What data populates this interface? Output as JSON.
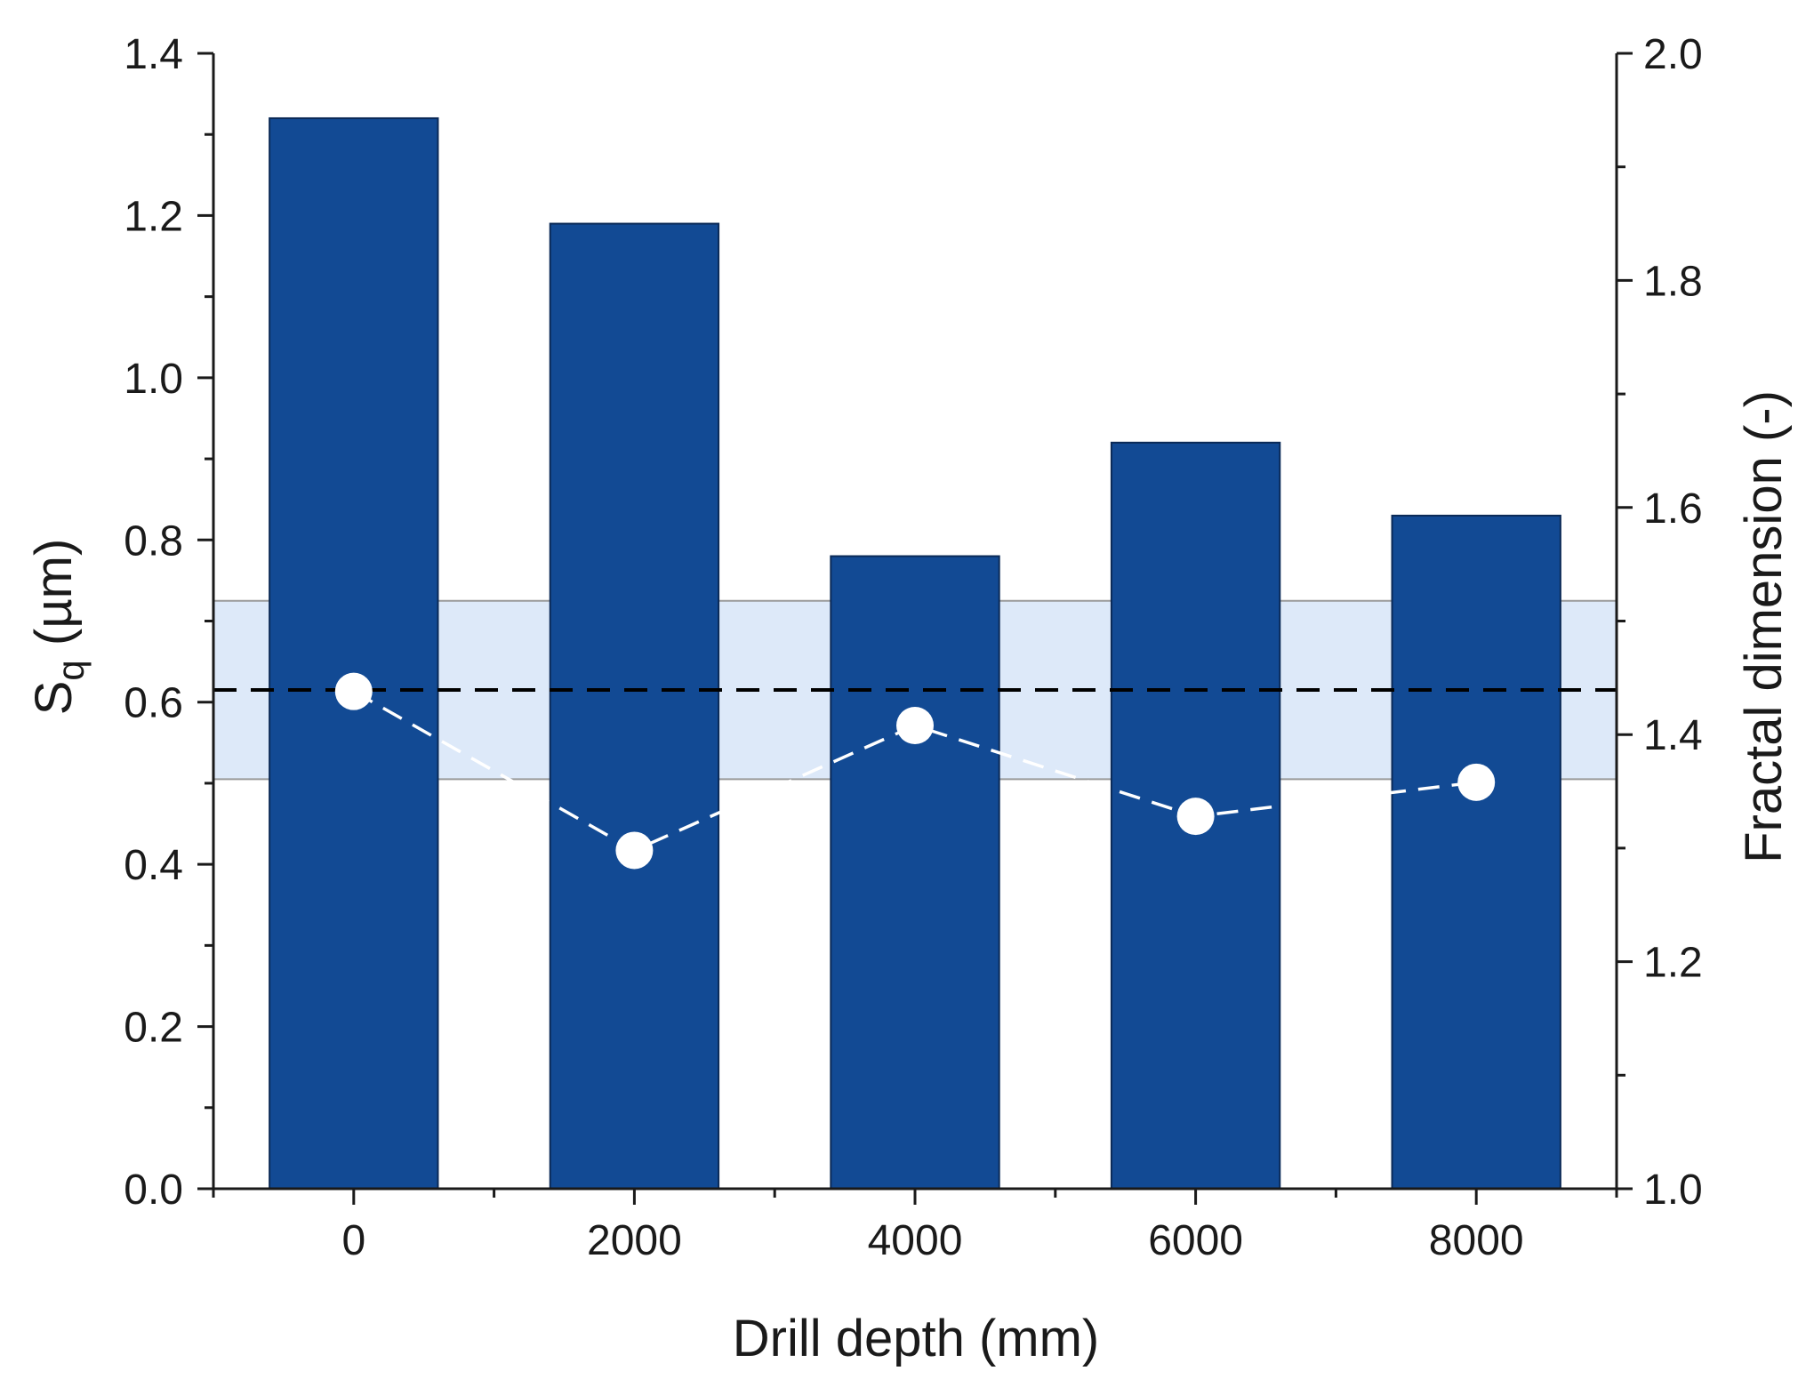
{
  "chart_data": {
    "type": "bar",
    "x": [
      0,
      2000,
      4000,
      6000,
      8000
    ],
    "categories": [
      "0",
      "2000",
      "4000",
      "6000",
      "8000"
    ],
    "series": [
      {
        "type": "bar",
        "axis": "left",
        "values": [
          1.32,
          1.19,
          0.78,
          0.92,
          0.83
        ],
        "color": "#124a94"
      },
      {
        "type": "line",
        "axis": "right",
        "values": [
          1.438,
          1.298,
          1.408,
          1.328,
          1.358
        ],
        "color": "#ffffff",
        "line_style": "dashed",
        "marker": "circle"
      }
    ],
    "reference_line": {
      "axis": "left",
      "value": 0.615,
      "color": "#000000",
      "line_style": "dashed"
    },
    "reference_band": {
      "axis": "left",
      "range": [
        0.505,
        0.725
      ],
      "color": "#dde9f9"
    },
    "xlabel": "Drill depth (mm)",
    "ylabel": {
      "main": "S",
      "subscript": "q",
      "rest": " (µm)"
    },
    "y2label": "Fractal dimension (-)",
    "xlim": [
      -1000,
      9000
    ],
    "ylim": [
      0,
      1.4
    ],
    "y2lim": [
      1.0,
      2.0
    ],
    "yticks": [
      "0.0",
      "0.2",
      "0.4",
      "0.6",
      "0.8",
      "1.0",
      "1.2",
      "1.4"
    ],
    "y2ticks": [
      "1.0",
      "1.2",
      "1.4",
      "1.6",
      "1.8",
      "2.0"
    ],
    "grid": false,
    "legend": "none"
  }
}
